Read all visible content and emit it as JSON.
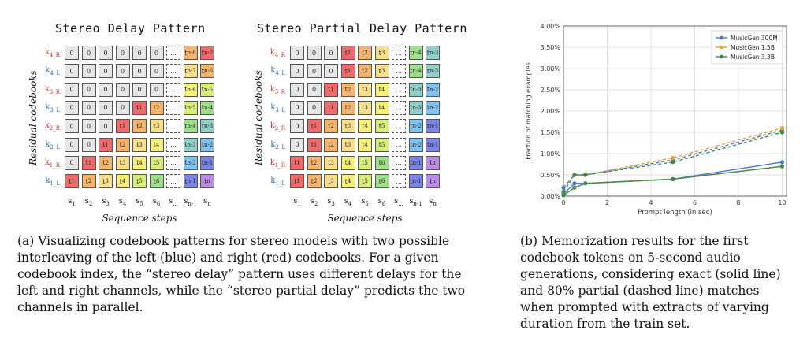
{
  "figure_a": {
    "grids": [
      {
        "title": "Stereo Delay Pattern",
        "ylabel": "Residual codebooks",
        "xlabel": "Sequence steps",
        "row_labels": [
          "k4_R",
          "k4_L",
          "k3_R",
          "k3_L",
          "k2_R",
          "k2_L",
          "k1_R",
          "k1_L"
        ],
        "col_labels": [
          "s1",
          "s2",
          "s3",
          "s4",
          "s5",
          "s6",
          "s...",
          "sn-1",
          "sn"
        ],
        "cells": [
          [
            "0",
            "0",
            "0",
            "0",
            "0",
            "0",
            "...",
            "tn-8",
            "tn-7"
          ],
          [
            "0",
            "0",
            "0",
            "0",
            "0",
            "0",
            "...",
            "tn-7",
            "tn-6"
          ],
          [
            "0",
            "0",
            "0",
            "0",
            "0",
            "0",
            "...",
            "tn-6",
            "tn-5"
          ],
          [
            "0",
            "0",
            "0",
            "0",
            "t1",
            "t2",
            "...",
            "tn-5",
            "tn-4"
          ],
          [
            "0",
            "0",
            "0",
            "t1",
            "t2",
            "t3",
            "...",
            "tn-4",
            "tn-3"
          ],
          [
            "0",
            "0",
            "t1",
            "t2",
            "t3",
            "t4",
            "...",
            "tn-3",
            "tn-2"
          ],
          [
            "0",
            "t1",
            "t2",
            "t3",
            "t4",
            "t5",
            "...",
            "tn-2",
            "tn-1"
          ],
          [
            "t1",
            "t2",
            "t3",
            "t4",
            "t5",
            "t6",
            "...",
            "tn-1",
            "tn"
          ]
        ]
      },
      {
        "title": "Stereo Partial Delay Pattern",
        "ylabel": "Residual codebooks",
        "xlabel": "Sequence steps",
        "row_labels": [
          "k4_R",
          "k4_L",
          "k3_R",
          "k3_L",
          "k2_R",
          "k2_L",
          "k1_R",
          "k1_L"
        ],
        "col_labels": [
          "s1",
          "s2",
          "s3",
          "s4",
          "s5",
          "s6",
          "s...",
          "sn-1",
          "sn"
        ],
        "cells": [
          [
            "0",
            "0",
            "0",
            "t1",
            "t2",
            "t3",
            "...",
            "tn-4",
            "tn-3"
          ],
          [
            "0",
            "0",
            "0",
            "t1",
            "t2",
            "t3",
            "...",
            "tn-4",
            "tn-3"
          ],
          [
            "0",
            "0",
            "t1",
            "t2",
            "t3",
            "t4",
            "...",
            "tn-3",
            "tn-2"
          ],
          [
            "0",
            "0",
            "t1",
            "t2",
            "t3",
            "t4",
            "...",
            "tn-3",
            "tn-2"
          ],
          [
            "0",
            "t1",
            "t2",
            "t3",
            "t4",
            "t5",
            "...",
            "tn-2",
            "tn-1"
          ],
          [
            "0",
            "t1",
            "t2",
            "t3",
            "t4",
            "t5",
            "...",
            "tn-2",
            "tn-1"
          ],
          [
            "t1",
            "t2",
            "t3",
            "t4",
            "t5",
            "t6",
            "...",
            "tn-1",
            "tn"
          ],
          [
            "t1",
            "t2",
            "t3",
            "t4",
            "t5",
            "t6",
            "...",
            "tn-1",
            "tn"
          ]
        ]
      }
    ],
    "cell_colors": {
      "0": "#e6e6e6",
      "...": "#ffffff",
      "t1": "#ef6b6b",
      "t2": "#f6b36b",
      "t3": "#f8e08a",
      "t4": "#f6f07a",
      "t5": "#d7ef7a",
      "t6": "#9fe08a",
      "tn-8": "#f6b36b",
      "tn-7": "#f8e08a",
      "tn-6": "#f6f07a",
      "tn-5": "#d7ef7a",
      "tn-4": "#9fe08a",
      "tn-3": "#8fd0c8",
      "tn-2": "#7fc3ef",
      "tn-1": "#7a84e6",
      "tn": "#b98ae6"
    },
    "special_colors": {
      "grid0_row0_last": "#ef6b6b",
      "grid0_row1_last": "#f6b36b"
    },
    "caption": "(a) Visualizing codebook patterns for stereo models with two possible interleaving of the left (blue) and right (red) codebooks. For a given codebook index, the “stereo delay” pattern uses different delays for the left and right channels, while the “stereo partial delay” predicts the two channels in parallel."
  },
  "figure_b": {
    "caption": "(b) Memorization results for the first codebook tokens on 5-second audio generations, considering exact (solid line) and 80% partial (dashed line) matches when prompted with extracts of varying duration from the train set."
  },
  "chart_data": {
    "type": "line",
    "title": "",
    "xlabel": "Prompt length (in sec)",
    "ylabel": "Fraction of matching examples",
    "xlim": [
      0,
      10.2
    ],
    "ylim": [
      0,
      4.0
    ],
    "x_ticks": [
      0,
      2,
      4,
      6,
      8,
      10
    ],
    "y_ticks": [
      0,
      0.5,
      1.0,
      1.5,
      2.0,
      2.5,
      3.0,
      3.5,
      4.0
    ],
    "y_tick_labels": [
      "0.00%",
      "0.50%",
      "1.00%",
      "1.50%",
      "2.00%",
      "2.50%",
      "3.00%",
      "3.50%",
      "4.00%"
    ],
    "grid": true,
    "legend_position": "top-right",
    "x": [
      0,
      0.5,
      1,
      5,
      10
    ],
    "series": [
      {
        "name": "MusicGen 300M",
        "color": "#4c72d0",
        "exact": [
          0.05,
          0.3,
          0.3,
          0.4,
          0.8
        ],
        "partial": [
          0.2,
          0.5,
          0.5,
          0.85,
          1.55
        ]
      },
      {
        "name": "MusicGen 1.5B",
        "color": "#f0a030",
        "exact": [
          0.02,
          0.2,
          0.3,
          0.4,
          0.7
        ],
        "partial": [
          0.1,
          0.5,
          0.5,
          0.9,
          1.6
        ]
      },
      {
        "name": "MusicGen 3.3B",
        "color": "#3e8a4e",
        "exact": [
          0.02,
          0.2,
          0.3,
          0.4,
          0.7
        ],
        "partial": [
          0.1,
          0.5,
          0.5,
          0.8,
          1.5
        ]
      }
    ]
  }
}
